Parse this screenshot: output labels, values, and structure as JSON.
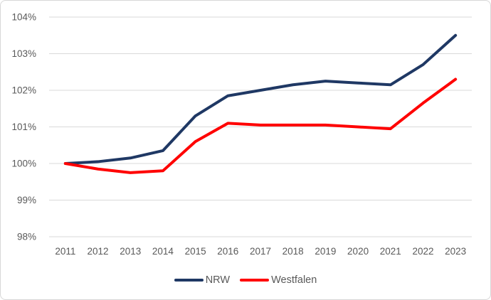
{
  "chart_data": {
    "type": "line",
    "title": "",
    "categories": [
      "2011",
      "2012",
      "2013",
      "2014",
      "2015",
      "2016",
      "2017",
      "2018",
      "2019",
      "2020",
      "2021",
      "2022",
      "2023"
    ],
    "series": [
      {
        "name": "NRW",
        "color": "#1f3864",
        "values": [
          100.0,
          100.05,
          100.15,
          100.35,
          101.3,
          101.85,
          102.0,
          102.15,
          102.25,
          102.2,
          102.15,
          102.7,
          103.5
        ]
      },
      {
        "name": "Westfalen",
        "color": "#ff0000",
        "values": [
          100.0,
          99.85,
          99.75,
          99.8,
          100.6,
          101.1,
          101.05,
          101.05,
          101.05,
          101.0,
          100.95,
          101.65,
          102.3
        ]
      }
    ],
    "y_axis": {
      "min": 98,
      "max": 104,
      "ticks": [
        {
          "value": 104,
          "label": "104%"
        },
        {
          "value": 103,
          "label": "103%"
        },
        {
          "value": 102,
          "label": "102%"
        },
        {
          "value": 101,
          "label": "101%"
        },
        {
          "value": 100,
          "label": "100%"
        },
        {
          "value": 99,
          "label": "99%"
        },
        {
          "value": 98,
          "label": "98%"
        }
      ]
    },
    "xlabel": "",
    "ylabel": "",
    "grid": "horizontal",
    "gridline_color": "#d9d9d9",
    "tick_label_color": "#595959",
    "legend_position": "bottom"
  }
}
